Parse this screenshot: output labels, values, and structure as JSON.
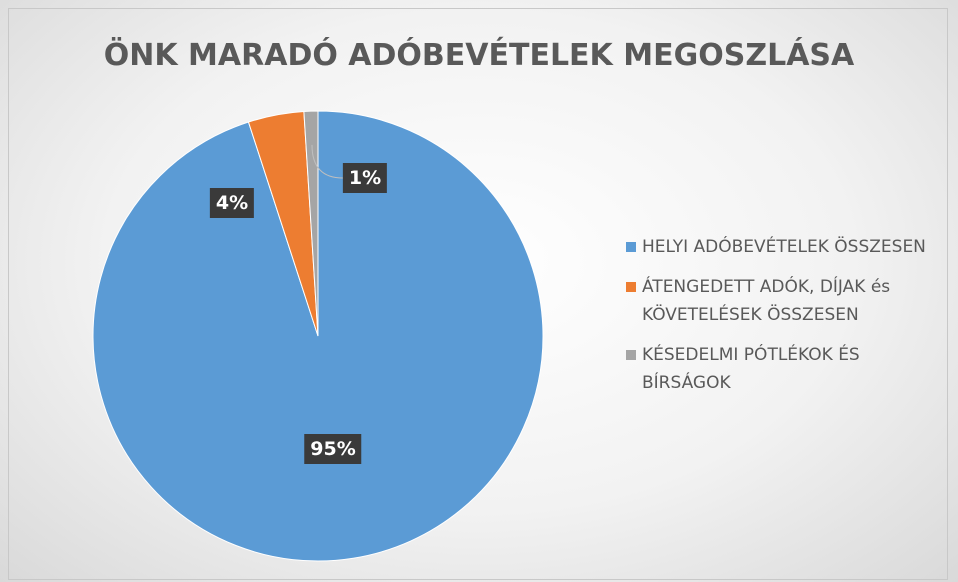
{
  "chart_data": {
    "type": "pie",
    "title": "ÖNK MARADÓ ADÓBEVÉTELEK MEGOSZLÁSA",
    "categories": [
      "HELYI ADÓBEVÉTELEK ÖSSZESEN",
      "ÁTENGEDETT ADÓK, DÍJAK és KÖVETELÉSEK ÖSSZESEN",
      "KÉSEDELMI PÓTLÉKOK ÉS BÍRSÁGOK"
    ],
    "values": [
      95,
      4,
      1
    ],
    "value_labels": [
      "95%",
      "4%",
      "1%"
    ],
    "colors": [
      "#5b9bd5",
      "#ed7d31",
      "#a5a5a5"
    ],
    "legend": "right"
  }
}
